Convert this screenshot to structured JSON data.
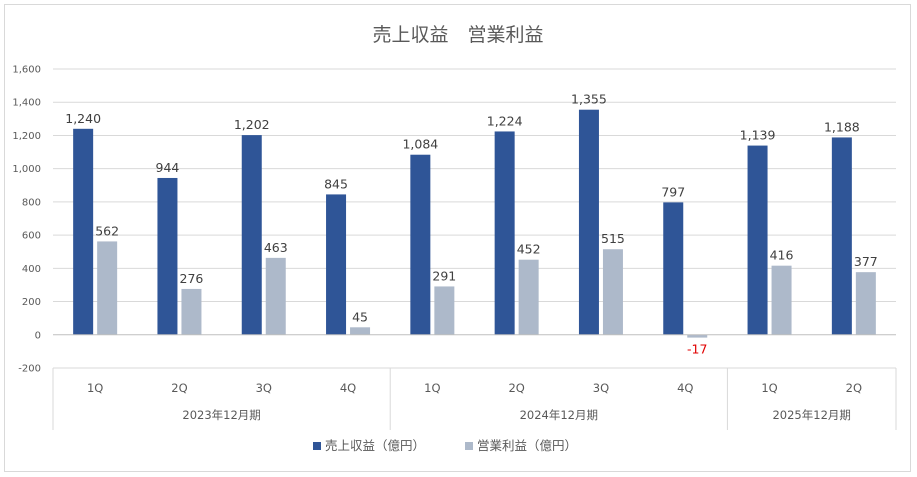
{
  "chart_data": {
    "type": "bar",
    "title": "売上収益　営業利益",
    "categories": [
      "1Q",
      "2Q",
      "3Q",
      "4Q",
      "1Q",
      "2Q",
      "3Q",
      "4Q",
      "1Q",
      "2Q"
    ],
    "groups": [
      {
        "label": "2023年12月期",
        "count": 4
      },
      {
        "label": "2024年12月期",
        "count": 4
      },
      {
        "label": "2025年12月期",
        "count": 2
      }
    ],
    "series": [
      {
        "name": "売上収益（億円）",
        "color": "#2f5597",
        "values": [
          1240,
          944,
          1202,
          845,
          1084,
          1224,
          1355,
          797,
          1139,
          1188
        ],
        "labels": [
          "1,240",
          "944",
          "1,202",
          "845",
          "1,084",
          "1,224",
          "1,355",
          "797",
          "1,139",
          "1,188"
        ]
      },
      {
        "name": "営業利益（億円）",
        "color": "#adb9ca",
        "values": [
          562,
          276,
          463,
          45,
          291,
          452,
          515,
          -17,
          416,
          377
        ],
        "labels": [
          "562",
          "276",
          "463",
          "45",
          "291",
          "452",
          "515",
          "-17",
          "416",
          "377"
        ]
      }
    ],
    "ylim": [
      -200,
      1600
    ],
    "yticks": [
      -200,
      0,
      200,
      400,
      600,
      800,
      1000,
      1200,
      1400,
      1600
    ],
    "ytick_labels": [
      "-200",
      "0",
      "200",
      "400",
      "600",
      "800",
      "1,000",
      "1,200",
      "1,400",
      "1,600"
    ],
    "negative_label_color": "#e00000",
    "legend_position": "bottom",
    "grid": true
  }
}
